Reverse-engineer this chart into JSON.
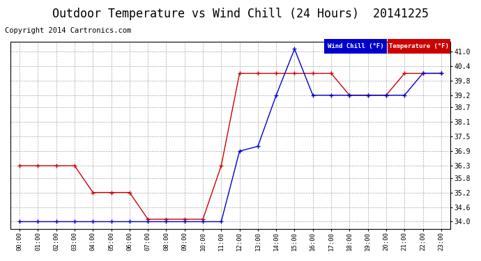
{
  "title": "Outdoor Temperature vs Wind Chill (24 Hours)  20141225",
  "copyright": "Copyright 2014 Cartronics.com",
  "hours": [
    "00:00",
    "01:00",
    "02:00",
    "03:00",
    "04:00",
    "05:00",
    "06:00",
    "07:00",
    "08:00",
    "09:00",
    "10:00",
    "11:00",
    "12:00",
    "13:00",
    "14:00",
    "15:00",
    "16:00",
    "17:00",
    "18:00",
    "19:00",
    "20:00",
    "21:00",
    "22:00",
    "23:00"
  ],
  "temperature": [
    36.3,
    36.3,
    36.3,
    36.3,
    35.2,
    35.2,
    35.2,
    34.1,
    34.1,
    34.1,
    34.1,
    36.3,
    40.1,
    40.1,
    40.1,
    40.1,
    40.1,
    40.1,
    39.2,
    39.2,
    39.2,
    40.1,
    40.1,
    40.1
  ],
  "wind_chill": [
    34.0,
    34.0,
    34.0,
    34.0,
    34.0,
    34.0,
    34.0,
    34.0,
    34.0,
    34.0,
    34.0,
    34.0,
    36.9,
    37.1,
    39.2,
    41.1,
    39.2,
    39.2,
    39.2,
    39.2,
    39.2,
    39.2,
    40.1,
    40.1
  ],
  "ylim": [
    33.7,
    41.4
  ],
  "yticks": [
    34.0,
    34.6,
    35.2,
    35.8,
    36.3,
    36.9,
    37.5,
    38.1,
    38.7,
    39.2,
    39.8,
    40.4,
    41.0
  ],
  "ytick_labels": [
    "34.0",
    "34.6",
    "35.2",
    "35.8",
    "36.3",
    "36.9",
    "37.5",
    "38.1",
    "38.7",
    "39.2",
    "39.8",
    "40.4",
    "41.0"
  ],
  "temp_color": "#cc0000",
  "wind_chill_color": "#0000cc",
  "background_color": "#ffffff",
  "grid_color": "#aaaaaa",
  "legend_wind_chill_bg": "#0000cc",
  "legend_temp_bg": "#cc0000",
  "legend_text_color": "#ffffff",
  "title_fontsize": 12,
  "copyright_fontsize": 7.5
}
